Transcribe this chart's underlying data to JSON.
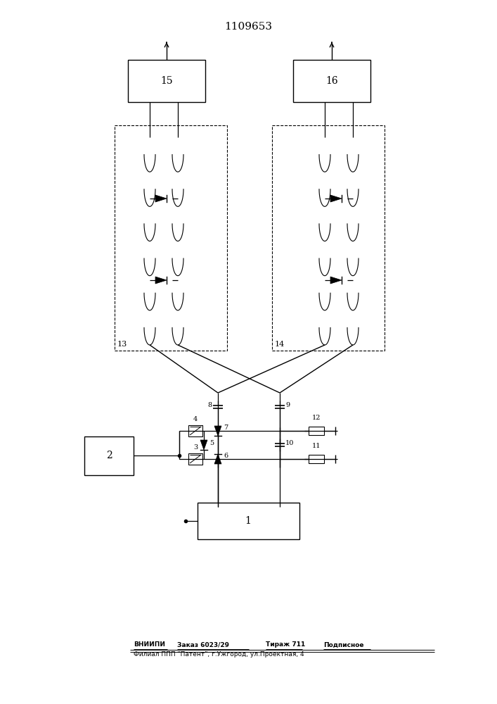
{
  "title": "1109653",
  "footer_line1_parts": [
    "ВНИИПИ",
    "Заказ 6023/29",
    "Тираж 711",
    "Подписное"
  ],
  "footer_line2": "Филиал ППП \"Патент\", г.Ужгород, ул.Проектная, 4",
  "bg_color": "#ffffff",
  "lc": "#000000",
  "b15_label": "15",
  "b16_label": "16",
  "b13_label": "13",
  "b14_label": "14",
  "b2_label": "2",
  "b1_label": "1"
}
